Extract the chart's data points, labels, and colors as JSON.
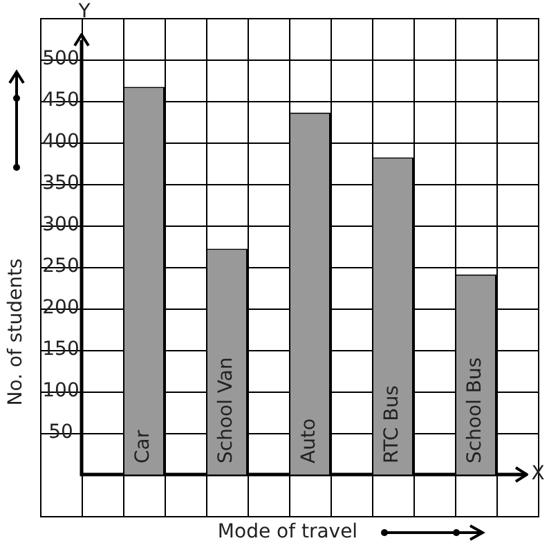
{
  "chart_data": {
    "type": "bar",
    "xlabel": "Mode of travel",
    "ylabel": "No. of students",
    "categories": [
      "Car",
      "School Van",
      "Auto",
      "RTC Bus",
      "School Bus"
    ],
    "values": [
      467,
      272,
      436,
      382,
      241
    ],
    "color": "#999999",
    "ylim": [
      -50,
      550
    ],
    "yticks": [
      50,
      100,
      150,
      200,
      250,
      300,
      350,
      400,
      450,
      500
    ],
    "grid": true,
    "annotations": [
      "Y",
      "X"
    ]
  }
}
